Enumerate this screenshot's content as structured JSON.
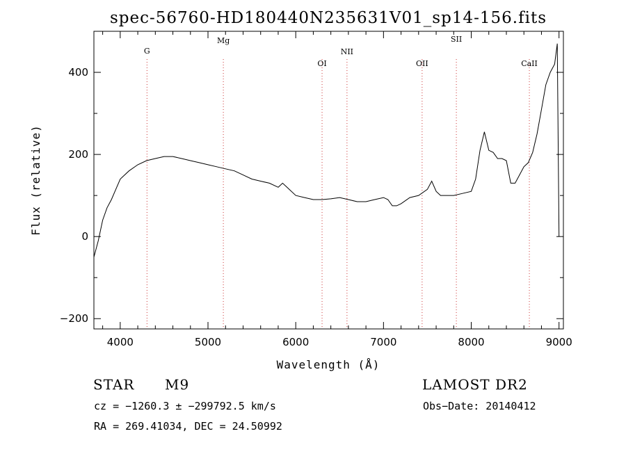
{
  "chart_data": {
    "type": "line",
    "title": "spec-56760-HD180440N235631V01_sp14-156.fits",
    "xlabel": "Wavelength (Å)",
    "ylabel": "Flux (relative)",
    "xlim": [
      3700,
      9050
    ],
    "ylim": [
      -225,
      500
    ],
    "x_ticks": [
      4000,
      5000,
      6000,
      7000,
      8000,
      9000
    ],
    "y_ticks": [
      -200,
      0,
      200,
      400
    ],
    "x_tick_labels": [
      "4000",
      "5000",
      "6000",
      "7000",
      "8000",
      "9000"
    ],
    "y_tick_labels": [
      "−200",
      "0",
      "200",
      "400"
    ],
    "grid": false,
    "line_color": "#000000",
    "marker_color": "#cc3333",
    "lines": [
      {
        "label": "G",
        "wavelength": 4305
      },
      {
        "label": "Mg",
        "wavelength": 5175
      },
      {
        "label": "OI",
        "wavelength": 6300
      },
      {
        "label": "NII",
        "wavelength": 6584
      },
      {
        "label": "OII",
        "wavelength": 7440
      },
      {
        "label": "SII",
        "wavelength": 7830
      },
      {
        "label": "CaII",
        "wavelength": 8662
      }
    ],
    "series": [
      {
        "x": [
          3700,
          3750,
          3800,
          3850,
          3900,
          3950,
          4000,
          4100,
          4200,
          4300,
          4400,
          4500,
          4600,
          4700,
          4800,
          4900,
          5000,
          5100,
          5200,
          5300,
          5400,
          5500,
          5600,
          5700,
          5800,
          5850,
          5900,
          6000,
          6100,
          6200,
          6300,
          6400,
          6500,
          6600,
          6700,
          6800,
          6900,
          7000,
          7050,
          7100,
          7150,
          7200,
          7300,
          7400,
          7500,
          7550,
          7600,
          7650,
          7700,
          7800,
          7900,
          8000,
          8050,
          8100,
          8150,
          8200,
          8250,
          8300,
          8350,
          8400,
          8450,
          8500,
          8550,
          8600,
          8650,
          8700,
          8750,
          8800,
          8850,
          8900,
          8950,
          8980,
          9000
        ],
        "y": [
          -50,
          -10,
          40,
          70,
          90,
          115,
          140,
          160,
          175,
          185,
          190,
          195,
          195,
          190,
          185,
          180,
          175,
          170,
          165,
          160,
          150,
          140,
          135,
          130,
          120,
          130,
          120,
          100,
          95,
          90,
          90,
          92,
          95,
          90,
          85,
          85,
          90,
          95,
          90,
          75,
          75,
          80,
          95,
          100,
          115,
          135,
          110,
          100,
          100,
          100,
          105,
          110,
          140,
          210,
          255,
          210,
          205,
          190,
          190,
          185,
          130,
          130,
          150,
          170,
          180,
          205,
          250,
          310,
          370,
          400,
          420,
          470,
          0
        ]
      }
    ]
  },
  "info": {
    "object_class": "STAR",
    "subclass": "M9",
    "survey": "LAMOST DR2",
    "redshift": "cz = −1260.3 ± −299792.5 km/s",
    "obs_date": "Obs−Date: 20140412",
    "coords": "RA = 269.41034, DEC =  24.50992"
  }
}
